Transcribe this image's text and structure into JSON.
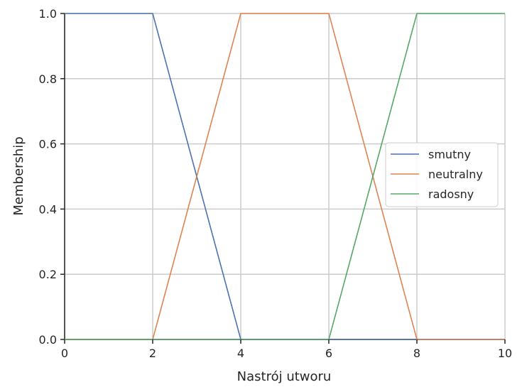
{
  "colors": {
    "background": "#ffffff",
    "grid": "#cccccc",
    "axis": "#262626",
    "legend_border": "#cccccc"
  },
  "chart_data": {
    "type": "line",
    "xlabel": "Nastrój utworu",
    "ylabel": "Membership",
    "xlim": [
      0,
      10
    ],
    "ylim": [
      0,
      1
    ],
    "xticks": [
      0,
      2,
      4,
      6,
      8,
      10
    ],
    "yticks": [
      0.0,
      0.2,
      0.4,
      0.6,
      0.8,
      1.0
    ],
    "xtick_labels": [
      "0",
      "2",
      "4",
      "6",
      "8",
      "10"
    ],
    "ytick_labels": [
      "0.0",
      "0.2",
      "0.4",
      "0.6",
      "0.8",
      "1.0"
    ],
    "grid": true,
    "legend_position": "center-right",
    "series": [
      {
        "name": "smutny",
        "color": "#4c72b0",
        "x": [
          0,
          2,
          4,
          10
        ],
        "y": [
          1,
          1,
          0,
          0
        ]
      },
      {
        "name": "neutralny",
        "color": "#dd8452",
        "x": [
          0,
          2,
          4,
          6,
          8,
          10
        ],
        "y": [
          0,
          0,
          1,
          1,
          0,
          0
        ]
      },
      {
        "name": "radosny",
        "color": "#55a868",
        "x": [
          0,
          6,
          8,
          10
        ],
        "y": [
          0,
          0,
          1,
          1
        ]
      }
    ]
  }
}
